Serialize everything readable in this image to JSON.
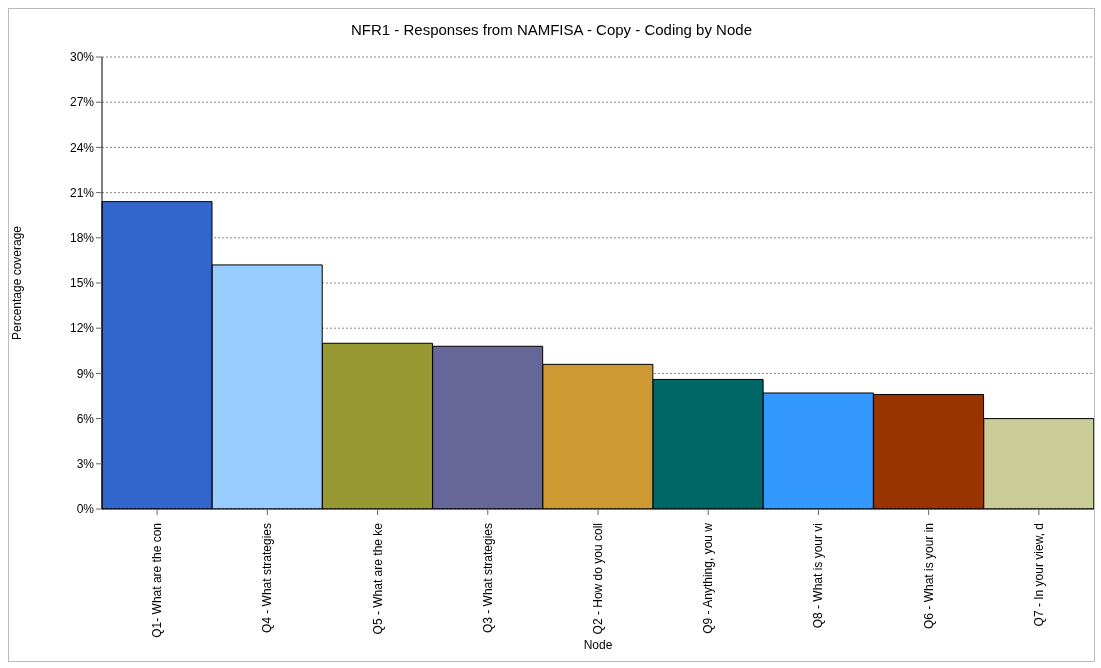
{
  "chart_data": {
    "type": "bar",
    "title": "NFR1 - Responses from NAMFISA - Copy - Coding by Node",
    "xlabel": "Node",
    "ylabel": "Percentage coverage",
    "categories": [
      "Q1- What are the con",
      "Q4 - What strategies",
      "Q5 - What are the ke",
      "Q3 - What strategies",
      "Q2 - How do you coll",
      "Q9 - Anything, you w",
      "Q8 - What is your vi",
      "Q6 - What is your in",
      "Q7 - In your view, d"
    ],
    "values": [
      20.4,
      16.2,
      11.0,
      10.8,
      9.6,
      8.6,
      7.7,
      7.6,
      6.0
    ],
    "colors": [
      "#3366cc",
      "#99ccff",
      "#999933",
      "#666699",
      "#cc9933",
      "#006666",
      "#3399ff",
      "#993300",
      "#cccc99"
    ],
    "ylim": [
      0,
      30
    ],
    "yticks": [
      {
        "value": 0,
        "label": "0%"
      },
      {
        "value": 3,
        "label": "3%"
      },
      {
        "value": 6,
        "label": "6%"
      },
      {
        "value": 9,
        "label": "9%"
      },
      {
        "value": 12,
        "label": "12%"
      },
      {
        "value": 15,
        "label": "15%"
      },
      {
        "value": 18,
        "label": "18%"
      },
      {
        "value": 21,
        "label": "21%"
      },
      {
        "value": 24,
        "label": "24%"
      },
      {
        "value": 27,
        "label": "27%"
      },
      {
        "value": 30,
        "label": "30%"
      }
    ],
    "grid": "y"
  }
}
